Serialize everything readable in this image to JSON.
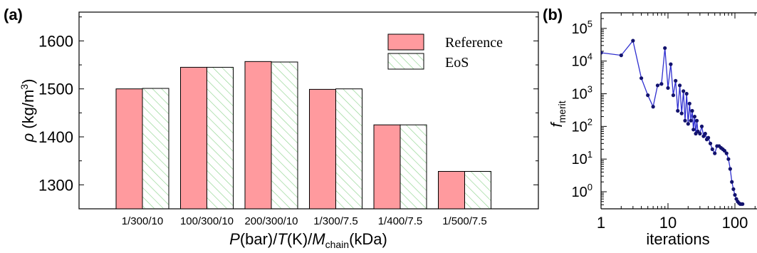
{
  "panel_a": {
    "label": "(a)",
    "ylabel_symbol": "ρ",
    "ylabel_unit_pre": " (kg/m",
    "ylabel_unit_sup": "3",
    "ylabel_unit_post": ")",
    "xlabel": {
      "p1": "P",
      "p2": "(bar)/",
      "p3": "T",
      "p4": "(K)/",
      "p5": "M",
      "p6": "chain",
      "p7": "(kDa)"
    }
  },
  "panel_b": {
    "label": "(b)",
    "ylabel_main": "f",
    "ylabel_sub": "merit",
    "xlabel": "iterations",
    "x_ticks": [
      "1",
      "10",
      "100"
    ],
    "y_tick_bases": [
      "10",
      "10",
      "10",
      "10",
      "10",
      "10"
    ],
    "y_tick_exps": [
      "0",
      "1",
      "2",
      "3",
      "4",
      "5"
    ]
  },
  "colors": {
    "reference_fill": "#ff9a9e",
    "eos_hatch": "#8fd48f",
    "line_b": "#2f2fd0",
    "marker_b": "#12126e"
  },
  "chart_data": [
    {
      "type": "bar",
      "title": "",
      "categories": [
        "1/300/10",
        "100/300/10",
        "200/300/10",
        "1/300/7.5",
        "1/400/7.5",
        "1/500/7.5"
      ],
      "series": [
        {
          "name": "Reference",
          "values": [
            1500,
            1545,
            1557,
            1499,
            1425,
            1328
          ]
        },
        {
          "name": "EoS",
          "values": [
            1501,
            1545,
            1556,
            1500,
            1425,
            1328
          ]
        }
      ],
      "ylim": [
        1250,
        1660
      ],
      "yticks": [
        1300,
        1400,
        1500,
        1600
      ],
      "grid": false,
      "legend": "top-right"
    },
    {
      "type": "line",
      "title": "",
      "xscale": "log",
      "yscale": "log",
      "x": [
        1,
        2,
        3,
        4,
        5,
        6,
        7,
        8,
        9,
        10,
        11,
        12,
        13,
        14,
        15,
        16,
        17,
        18,
        19,
        20,
        21,
        22,
        23,
        24,
        25,
        26,
        27,
        28,
        30,
        32,
        34,
        36,
        38,
        40,
        43,
        46,
        50,
        54,
        58,
        62,
        66,
        70,
        75,
        80,
        85,
        90,
        95,
        100,
        105,
        110,
        115,
        120,
        125,
        130
      ],
      "y": [
        18000,
        15000,
        42000,
        3000,
        900,
        400,
        1800,
        2000,
        25000,
        1500,
        8000,
        900,
        2500,
        300,
        1800,
        250,
        1200,
        150,
        1000,
        120,
        500,
        150,
        300,
        80,
        200,
        60,
        150,
        70,
        60,
        100,
        50,
        60,
        40,
        45,
        30,
        20,
        15,
        25,
        25,
        22,
        20,
        18,
        15,
        10,
        5,
        2,
        1.2,
        0.8,
        0.6,
        0.5,
        0.45,
        0.42,
        0.42,
        0.42
      ],
      "xlim": [
        1,
        130
      ],
      "ylim": [
        0.3,
        300000
      ],
      "grid": false
    }
  ]
}
